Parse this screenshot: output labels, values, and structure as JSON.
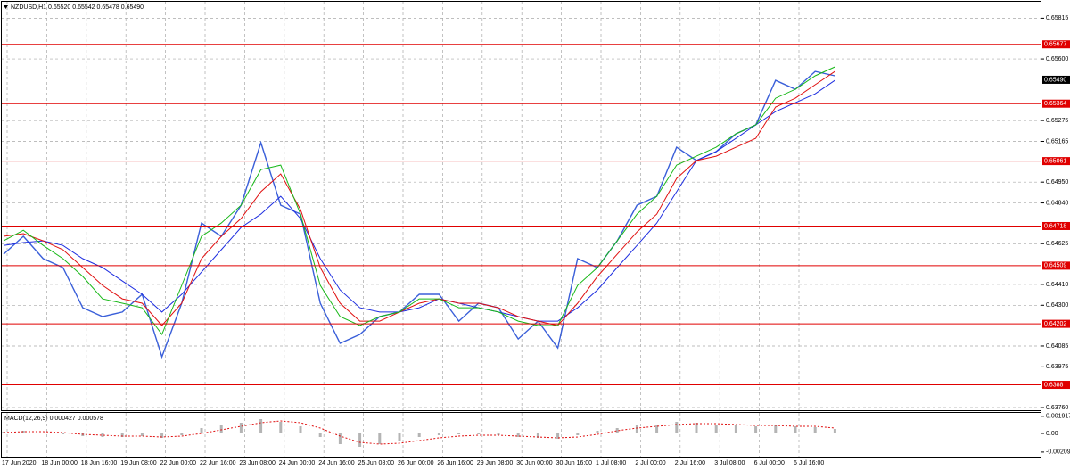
{
  "chart_data": [
    {
      "type": "line",
      "title": "NZDUSD,H1",
      "subtitle": "0.65520 0.65542 0.65478 0.65490",
      "categories": [
        "17 Jun 2020",
        null,
        "18 Jun 00:00",
        null,
        "18 Jun 16:00",
        null,
        "19 Jun 08:00",
        null,
        "22 Jun 00:00",
        null,
        "22 Jun 16:00",
        null,
        "23 Jun 08:00",
        null,
        "24 Jun 00:00",
        null,
        "24 Jun 16:00",
        null,
        "25 Jun 08:00",
        null,
        "26 Jun 00:00",
        null,
        "26 Jun 16:00",
        null,
        "29 Jun 08:00",
        null,
        "30 Jun 00:00",
        null,
        "30 Jun 16:00",
        null,
        "1 Jul 08:00",
        null,
        "2 Jul 00:00",
        null,
        "2 Jul 16:00",
        null,
        "3 Jul 08:00",
        null,
        "6 Jul 00:00",
        null,
        "6 Jul 16:00",
        null,
        null
      ],
      "series": [
        {
          "color": "#3a5fd9",
          "width": 1.4,
          "values": [
            0.64569,
            0.64664,
            0.64546,
            0.64499,
            0.64287,
            0.6424,
            0.64264,
            0.64358,
            0.64028,
            0.64311,
            0.64734,
            0.64664,
            0.64828,
            0.65158,
            0.64828,
            0.64781,
            0.64311,
            0.64099,
            0.64146,
            0.6424,
            0.64264,
            0.64358,
            0.64358,
            0.64216,
            0.64311,
            0.64287,
            0.64122,
            0.64216,
            0.64075,
            0.64546,
            0.64499,
            0.6464,
            0.64828,
            0.64875,
            0.65134,
            0.65064,
            0.65111,
            0.65205,
            0.65252,
            0.65487,
            0.6544,
            0.65534,
            0.65511
          ]
        },
        {
          "color": "#1e2ee0",
          "width": 1,
          "values": [
            0.64616,
            0.64631,
            0.6464,
            0.64616,
            0.64546,
            0.64499,
            0.64428,
            0.64358,
            0.64264,
            0.64358,
            0.64475,
            0.64593,
            0.64711,
            0.64781,
            0.64875,
            0.64758,
            0.64546,
            0.64381,
            0.64287,
            0.64264,
            0.64264,
            0.64287,
            0.64334,
            0.64311,
            0.64287,
            0.64264,
            0.6424,
            0.64216,
            0.64216,
            0.64287,
            0.64381,
            0.64499,
            0.64616,
            0.64734,
            0.64899,
            0.65064,
            0.65111,
            0.65181,
            0.65252,
            0.65322,
            0.65369,
            0.65416,
            0.65487
          ]
        },
        {
          "color": "#e01010",
          "width": 1,
          "values": [
            0.64664,
            0.64678,
            0.6464,
            0.64593,
            0.64499,
            0.64405,
            0.64334,
            0.64311,
            0.64193,
            0.64311,
            0.64546,
            0.64664,
            0.64758,
            0.64899,
            0.64993,
            0.64805,
            0.64499,
            0.64311,
            0.64216,
            0.64216,
            0.64264,
            0.64311,
            0.64334,
            0.64311,
            0.64311,
            0.64287,
            0.6424,
            0.64216,
            0.64193,
            0.64311,
            0.64452,
            0.64569,
            0.64687,
            0.64781,
            0.64969,
            0.65064,
            0.65087,
            0.65134,
            0.65181,
            0.65346,
            0.65393,
            0.65464,
            0.65534
          ]
        },
        {
          "color": "#18b818",
          "width": 1,
          "values": [
            0.6464,
            0.64696,
            0.64616,
            0.64546,
            0.64452,
            0.64334,
            0.64311,
            0.64287,
            0.64146,
            0.64405,
            0.64664,
            0.64734,
            0.64828,
            0.65016,
            0.6504,
            0.64781,
            0.64405,
            0.6424,
            0.64193,
            0.6424,
            0.64264,
            0.64334,
            0.64334,
            0.64287,
            0.64287,
            0.64264,
            0.64216,
            0.64193,
            0.64193,
            0.64405,
            0.64499,
            0.6464,
            0.64781,
            0.64875,
            0.6504,
            0.65087,
            0.65134,
            0.65205,
            0.65252,
            0.65393,
            0.6544,
            0.65511,
            0.65558
          ]
        }
      ],
      "levels": [
        0.65677,
        0.65364,
        0.65061,
        0.64718,
        0.64509,
        0.64202,
        0.6388
      ],
      "level_color": "#e00000",
      "current_price": {
        "value": 0.6549,
        "label": "0.65490"
      },
      "ylim": [
        0.63746,
        0.65911
      ],
      "yticks": [
        0.65815,
        {
          "value": 0.656,
          "label": "0.65600"
        },
        0.65275,
        0.65165,
        {
          "value": 0.6495,
          "label": "0.64950"
        },
        {
          "value": 0.6484,
          "label": "0.64840"
        },
        0.64625,
        {
          "value": 0.6441,
          "label": "0.64410"
        },
        {
          "value": 0.643,
          "label": "0.64300"
        },
        0.64085,
        0.63975,
        {
          "value": 0.6376,
          "label": "0.63760"
        }
      ],
      "grid": true
    },
    {
      "type": "macd",
      "title": "MACD(12,26,9) 0.000427 0.000578",
      "histogram": {
        "color": "#b4b4b4",
        "values": [
          0.0002,
          0.0003,
          0.0001,
          -0.0001,
          -0.0003,
          -0.0004,
          -0.0004,
          -0.0003,
          -0.0005,
          -0.0002,
          0.0006,
          0.0009,
          0.0012,
          0.0016,
          0.0013,
          0.0008,
          -0.0004,
          -0.0012,
          -0.0015,
          -0.0012,
          -0.0008,
          -0.0004,
          -0.0002,
          -0.0001,
          -0.0001,
          -0.0002,
          -0.0004,
          -0.0005,
          -0.0006,
          -0.0002,
          0.0003,
          0.0006,
          0.0009,
          0.001,
          0.0013,
          0.0012,
          0.001,
          0.0009,
          0.0008,
          0.0009,
          0.0008,
          0.0007,
          0.0005
        ]
      },
      "signal": {
        "color": "#e01010",
        "values": [
          0.0001,
          0.0002,
          0.0002,
          0.0001,
          -0.0001,
          -0.0002,
          -0.0003,
          -0.0003,
          -0.0004,
          -0.0003,
          0.0,
          0.0004,
          0.0008,
          0.0012,
          0.0014,
          0.0012,
          0.0006,
          -0.0003,
          -0.001,
          -0.0012,
          -0.0011,
          -0.0008,
          -0.0005,
          -0.0003,
          -0.0002,
          -0.0002,
          -0.0003,
          -0.0004,
          -0.0005,
          -0.0004,
          -0.0001,
          0.0003,
          0.0006,
          0.0008,
          0.001,
          0.0011,
          0.0011,
          0.001,
          0.0009,
          0.0009,
          0.0008,
          0.0008,
          0.0006
        ]
      },
      "ylim": [
        -0.0026,
        0.0024
      ],
      "yticks": [
        0.001917,
        {
          "value": 0,
          "label": "0.00"
        },
        -0.00209
      ]
    }
  ]
}
